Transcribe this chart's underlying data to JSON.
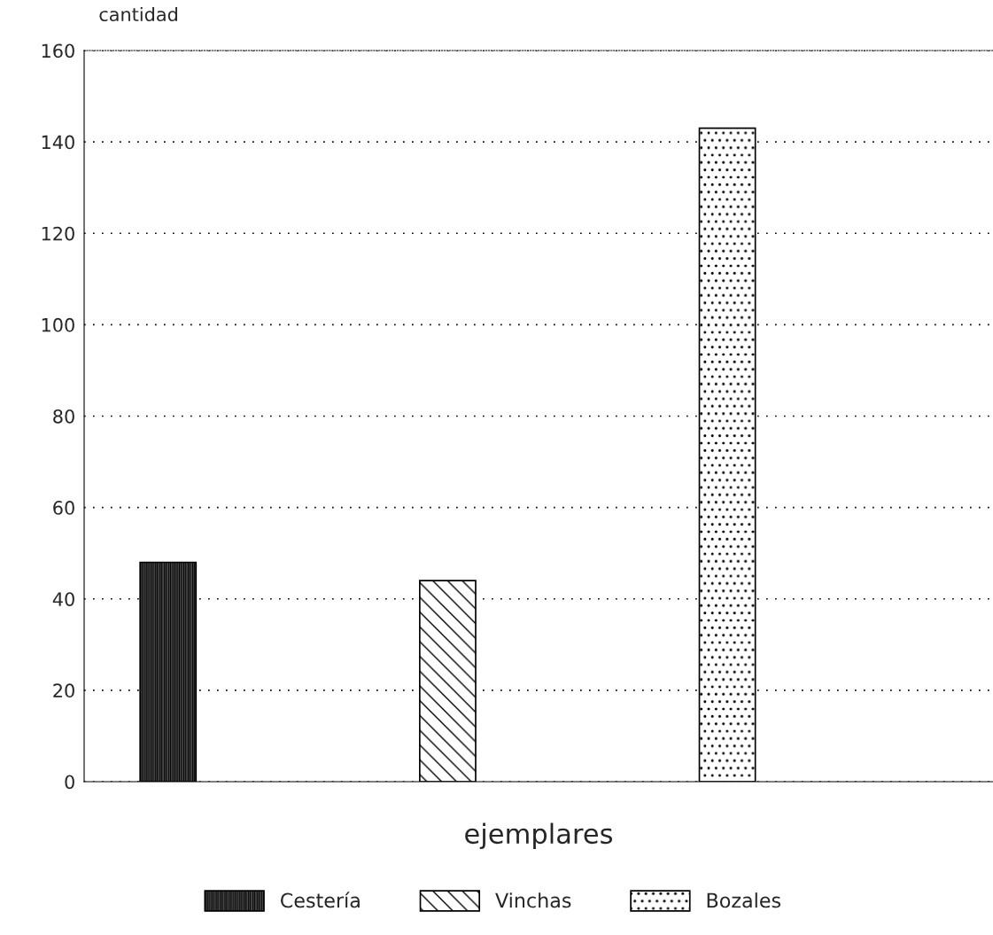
{
  "chart_data": {
    "type": "bar",
    "ylabel": "cantidad",
    "xlabel": "ejemplares",
    "categories": [
      null,
      null,
      null
    ],
    "series": [
      {
        "name": "Cestería",
        "color": "#000000",
        "values": [
          48,
          null,
          null
        ]
      },
      {
        "name": "Vinchas",
        "color": "#000000",
        "values": [
          null,
          44,
          null
        ]
      },
      {
        "name": "Bozales",
        "color": "#000000",
        "values": [
          null,
          null,
          143
        ]
      }
    ],
    "ylim": [
      0,
      160
    ],
    "yticks": [
      0,
      20,
      40,
      60,
      80,
      100,
      120,
      140,
      160
    ],
    "grid": "y",
    "legend": "bottom"
  }
}
